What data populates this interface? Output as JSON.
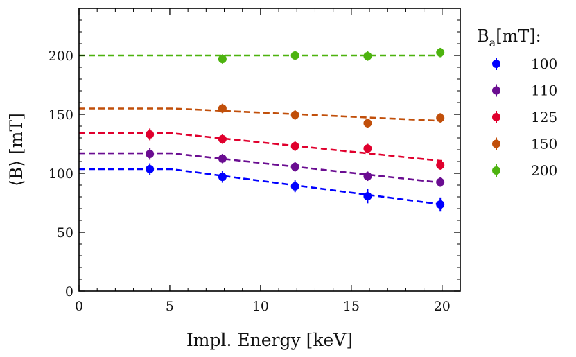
{
  "chart_data": {
    "type": "scatter",
    "xlabel": "Impl. Energy [keV]",
    "ylabel": "⟨B⟩ [mT]",
    "xlim": [
      0,
      21
    ],
    "ylim": [
      0,
      240
    ],
    "xticks": [
      0,
      5,
      10,
      15,
      20
    ],
    "yticks": [
      0,
      50,
      100,
      150,
      200
    ],
    "grid": false,
    "legend": {
      "placement": "outside-right",
      "title_main": "B",
      "title_sub": "a",
      "title_rest": "[mT]:"
    },
    "series": [
      {
        "name": "100",
        "color": "#0000ff",
        "points": [
          {
            "x": 3.9,
            "y": 103.5,
            "err": 5
          },
          {
            "x": 7.9,
            "y": 97,
            "err": 5
          },
          {
            "x": 11.9,
            "y": 89,
            "err": 5
          },
          {
            "x": 15.9,
            "y": 80.5,
            "err": 6
          },
          {
            "x": 19.9,
            "y": 73.5,
            "err": 6
          }
        ],
        "fit": [
          [
            0,
            103.5
          ],
          [
            5.1,
            103.5
          ],
          [
            20,
            73.5
          ]
        ]
      },
      {
        "name": "110",
        "color": "#6a0d91",
        "points": [
          {
            "x": 3.9,
            "y": 116.5,
            "err": 5
          },
          {
            "x": 7.9,
            "y": 112.5,
            "err": 4
          },
          {
            "x": 11.9,
            "y": 105.5,
            "err": 4
          },
          {
            "x": 15.9,
            "y": 97.5,
            "err": 4
          },
          {
            "x": 19.9,
            "y": 92.5,
            "err": 4
          }
        ],
        "fit": [
          [
            0,
            117
          ],
          [
            5.1,
            117
          ],
          [
            20,
            92
          ]
        ]
      },
      {
        "name": "125",
        "color": "#e0002d",
        "points": [
          {
            "x": 3.9,
            "y": 133,
            "err": 5
          },
          {
            "x": 7.9,
            "y": 129,
            "err": 4
          },
          {
            "x": 11.9,
            "y": 123,
            "err": 4
          },
          {
            "x": 15.9,
            "y": 121,
            "err": 4
          },
          {
            "x": 19.9,
            "y": 107,
            "err": 4
          }
        ],
        "fit": [
          [
            0,
            134
          ],
          [
            5.1,
            134
          ],
          [
            20,
            110.5
          ]
        ]
      },
      {
        "name": "150",
        "color": "#c14f0a",
        "points": [
          {
            "x": 7.9,
            "y": 155,
            "err": 4
          },
          {
            "x": 11.9,
            "y": 149.5,
            "err": 4
          },
          {
            "x": 15.9,
            "y": 142.5,
            "err": 4
          },
          {
            "x": 19.9,
            "y": 147,
            "err": 4
          }
        ],
        "fit": [
          [
            0,
            155
          ],
          [
            5.1,
            155
          ],
          [
            20,
            144.5
          ]
        ]
      },
      {
        "name": "200",
        "color": "#4db30f",
        "points": [
          {
            "x": 7.9,
            "y": 197,
            "err": 4
          },
          {
            "x": 11.9,
            "y": 200,
            "err": 4
          },
          {
            "x": 15.9,
            "y": 199.5,
            "err": 4
          },
          {
            "x": 19.9,
            "y": 202.5,
            "err": 4
          }
        ],
        "fit": [
          [
            0,
            200
          ],
          [
            20,
            200
          ]
        ]
      }
    ]
  }
}
